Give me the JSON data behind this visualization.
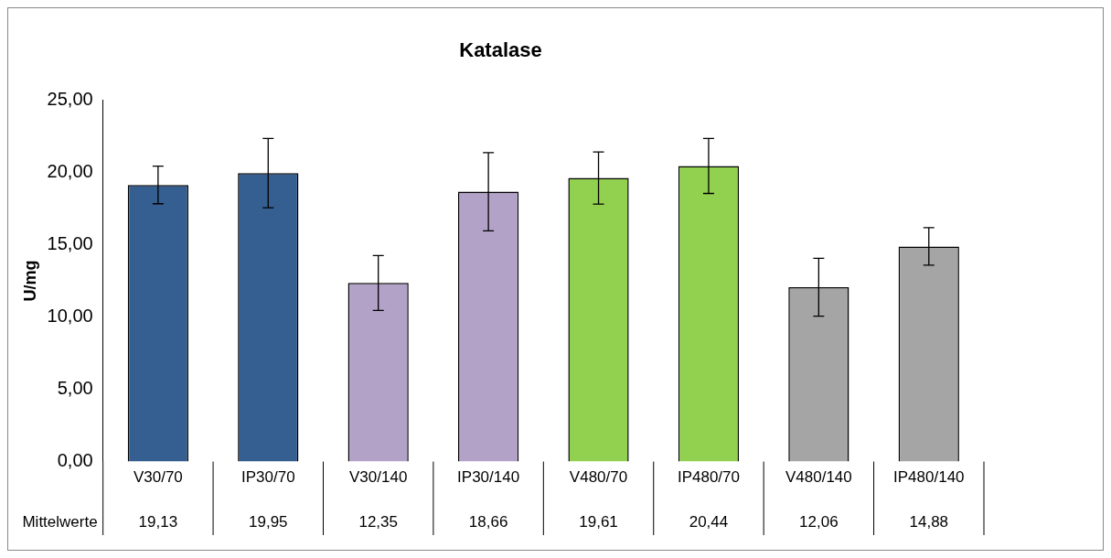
{
  "chart_data": {
    "type": "bar",
    "title": "Katalase",
    "ylabel": "U/mg",
    "categories": [
      "V30/70",
      "IP30/70",
      "V30/140",
      "IP30/140",
      "V480/70",
      "IP480/70",
      "V480/140",
      "IP480/140"
    ],
    "values": [
      19.13,
      19.95,
      12.35,
      18.66,
      19.61,
      20.44,
      12.06,
      14.88
    ],
    "colors": [
      "#355e91",
      "#355e91",
      "#b2a2c7",
      "#b2a2c7",
      "#92d050",
      "#92d050",
      "#a5a5a5",
      "#a5a5a5"
    ],
    "errors": [
      1.3,
      2.4,
      1.9,
      2.7,
      1.8,
      1.9,
      2.0,
      1.3
    ],
    "value_labels": [
      "19,13",
      "19,95",
      "12,35",
      "18,66",
      "19,61",
      "20,44",
      "12,06",
      "14,88"
    ],
    "annotations": [
      "Mittelwerte"
    ],
    "ylim": [
      0,
      25
    ],
    "yticks": [
      {
        "value": 0,
        "label": "0,00"
      },
      {
        "value": 5,
        "label": "5,00"
      },
      {
        "value": 10,
        "label": "10,00"
      },
      {
        "value": 15,
        "label": "15,00"
      },
      {
        "value": 20,
        "label": "20,00"
      },
      {
        "value": 25,
        "label": "25,00"
      }
    ],
    "grid": false,
    "legend": false
  }
}
